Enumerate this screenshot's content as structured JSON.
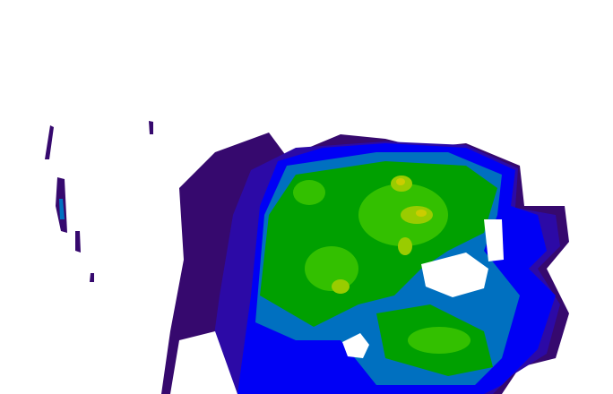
{
  "image": {
    "kind": "weather radar reflectivity scan",
    "palette": {
      "background": "#ffffff",
      "indigo": "#36096e",
      "violet": "#2c0aa6",
      "blue": "#0000f5",
      "steel_blue": "#0070c0",
      "green": "#00a000",
      "light_green": "#33c000",
      "yellow_green": "#99cc00",
      "yellow": "#cccc00"
    }
  }
}
